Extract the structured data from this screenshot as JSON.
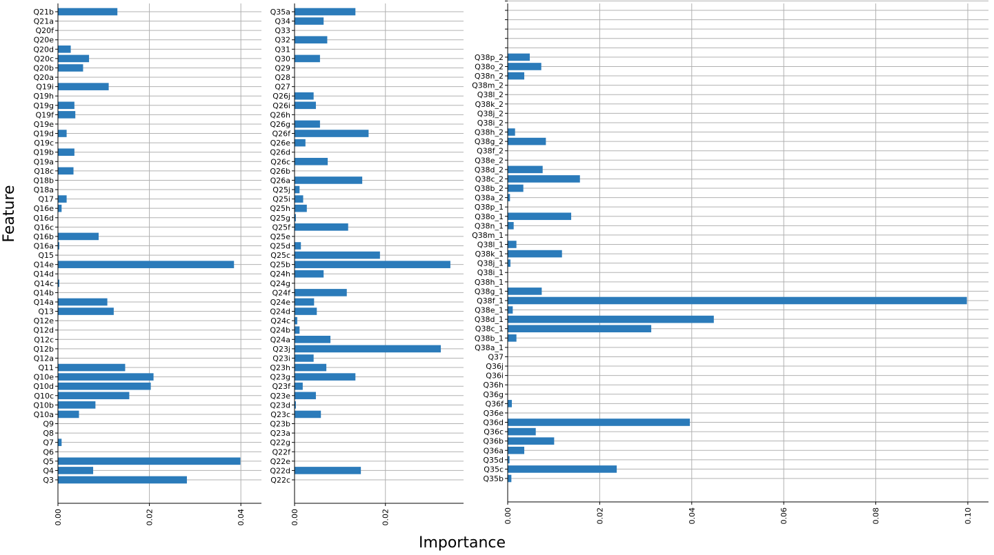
{
  "figure": {
    "xlabel": "Importance",
    "ylabel": "Feature"
  },
  "colors": {
    "bar": "#2b7bba",
    "grid": "#b0b0b0",
    "axis": "#000000"
  },
  "chart_data": [
    {
      "type": "bar",
      "orientation": "horizontal",
      "grid": true,
      "xlim": [
        0,
        0.0445
      ],
      "xticks": [
        0.0,
        0.02,
        0.04
      ],
      "xtick_labels": [
        "0.00",
        "0.02",
        "0.04"
      ],
      "categories": [
        "Q21b",
        "Q21a",
        "Q20f",
        "Q20e",
        "Q20d",
        "Q20c",
        "Q20b",
        "Q20a",
        "Q19i",
        "Q19h",
        "Q19g",
        "Q19f",
        "Q19e",
        "Q19d",
        "Q19c",
        "Q19b",
        "Q19a",
        "Q18c",
        "Q18b",
        "Q18a",
        "Q17",
        "Q16e",
        "Q16d",
        "Q16c",
        "Q16b",
        "Q16a",
        "Q15",
        "Q14e",
        "Q14d",
        "Q14c",
        "Q14b",
        "Q14a",
        "Q13",
        "Q12e",
        "Q12d",
        "Q12c",
        "Q12b",
        "Q12a",
        "Q11",
        "Q10e",
        "Q10d",
        "Q10c",
        "Q10b",
        "Q10a",
        "Q9",
        "Q8",
        "Q7",
        "Q6",
        "Q5",
        "Q4",
        "Q3"
      ],
      "values": [
        0.013,
        0,
        0,
        0,
        0.0028,
        0.0068,
        0.0055,
        0,
        0.0111,
        0,
        0.0036,
        0.0038,
        0,
        0.0019,
        0,
        0.0036,
        0,
        0.0034,
        0,
        0,
        0.0019,
        0.0008,
        0,
        0,
        0.0089,
        0.0003,
        0,
        0.0385,
        0,
        0.0003,
        0,
        0.0108,
        0.0122,
        0,
        0,
        0,
        0,
        0,
        0.0147,
        0.0209,
        0.0203,
        0.0156,
        0.0082,
        0.0046,
        0,
        0,
        0.0008,
        0,
        0.0399,
        0.0077,
        0.0282
      ]
    },
    {
      "type": "bar",
      "orientation": "horizontal",
      "grid": true,
      "xlim": [
        0,
        0.0372
      ],
      "xticks": [
        0.0,
        0.02
      ],
      "xtick_labels": [
        "0.00",
        "0.02"
      ],
      "categories": [
        "Q35a",
        "Q34",
        "Q33",
        "Q32",
        "Q31",
        "Q30",
        "Q29",
        "Q28",
        "Q27",
        "Q26j",
        "Q26i",
        "Q26h",
        "Q26g",
        "Q26f",
        "Q26e",
        "Q26d",
        "Q26c",
        "Q26b",
        "Q26a",
        "Q25j",
        "Q25i",
        "Q25h",
        "Q25g",
        "Q25f",
        "Q25e",
        "Q25d",
        "Q25c",
        "Q25b",
        "Q24h",
        "Q24g",
        "Q24f",
        "Q24e",
        "Q24d",
        "Q24c",
        "Q24b",
        "Q24a",
        "Q23j",
        "Q23i",
        "Q23h",
        "Q23g",
        "Q23f",
        "Q23e",
        "Q23d",
        "Q23c",
        "Q23b",
        "Q23a",
        "Q22g",
        "Q22f",
        "Q22e",
        "Q22d",
        "Q22c"
      ],
      "values": [
        0.0134,
        0.0064,
        0,
        0.0072,
        0,
        0.0056,
        0,
        0,
        0,
        0.0042,
        0.0047,
        0,
        0.0056,
        0.0163,
        0.0024,
        0,
        0.0073,
        0,
        0.0149,
        0.0011,
        0.0019,
        0.0027,
        0.0003,
        0.0118,
        0,
        0.0014,
        0.0188,
        0.0343,
        0.0064,
        0,
        0.0115,
        0.0043,
        0.0049,
        0.0006,
        0.0011,
        0.0079,
        0.0322,
        0.0042,
        0.007,
        0.0134,
        0.0018,
        0.0047,
        0.0003,
        0.0058,
        0,
        0,
        0,
        0,
        0,
        0.0146,
        0
      ]
    },
    {
      "type": "bar",
      "orientation": "horizontal",
      "grid": true,
      "xlim": [
        0,
        0.1045
      ],
      "xticks": [
        0.0,
        0.02,
        0.04,
        0.06,
        0.08,
        0.1
      ],
      "xtick_labels": [
        "0.00",
        "0.02",
        "0.04",
        "0.06",
        "0.08",
        "0.10"
      ],
      "categories": [
        "",
        "",
        "",
        "",
        "",
        "",
        "",
        "",
        "Q38p_2",
        "Q38o_2",
        "Q38n_2",
        "Q38m_2",
        "Q38l_2",
        "Q38k_2",
        "Q38j_2",
        "Q38i_2",
        "Q38h_2",
        "Q38g_2",
        "Q38f_2",
        "Q38e_2",
        "Q38d_2",
        "Q38c_2",
        "Q38b_2",
        "Q38a_2",
        "Q38p_1",
        "Q38o_1",
        "Q38n_1",
        "Q38m_1",
        "Q38l_1",
        "Q38k_1",
        "Q38j_1",
        "Q38i_1",
        "Q38h_1",
        "Q38g_1",
        "Q38f_1",
        "Q38e_1",
        "Q38d_1",
        "Q38c_1",
        "Q38b_1",
        "Q38a_1",
        "Q37",
        "Q36j",
        "Q36i",
        "Q36h",
        "Q36g",
        "Q36f",
        "Q36e",
        "Q36d",
        "Q36c",
        "Q36b",
        "Q36a",
        "Q35d",
        "Q35c",
        "Q35b"
      ],
      "values": [
        0,
        0,
        0,
        0,
        0,
        0,
        0,
        0,
        0.0048,
        0.0073,
        0.0036,
        0,
        0,
        0,
        0,
        0,
        0.0016,
        0.0083,
        0,
        0,
        0.0076,
        0.0157,
        0.0034,
        0.0005,
        0,
        0.0138,
        0.0013,
        0,
        0.0019,
        0.0118,
        0.0006,
        0,
        0,
        0.0074,
        0.0998,
        0.0011,
        0.0448,
        0.0312,
        0.0019,
        0,
        0,
        0,
        0,
        0,
        0,
        0.0009,
        0,
        0.0396,
        0.0061,
        0.0101,
        0.0036,
        0.0004,
        0.0237,
        0.0008
      ]
    }
  ]
}
